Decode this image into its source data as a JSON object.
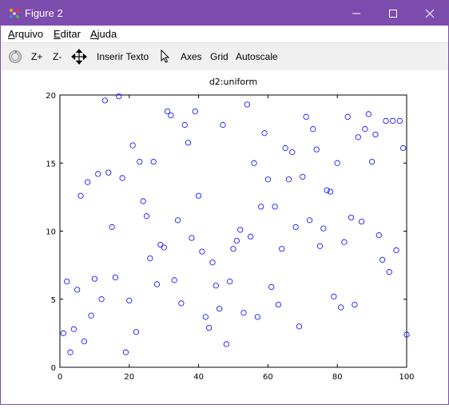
{
  "window": {
    "title": "Figure 2"
  },
  "menu": {
    "file_prefix": "",
    "file_hot": "A",
    "file_rest": "rquivo",
    "edit_hot": "E",
    "edit_rest": "ditar",
    "help_hot": "A",
    "help_rest": "juda"
  },
  "toolbar": {
    "zoom_in": "Z+",
    "zoom_out": "Z-",
    "insert_text": "Inserir Texto",
    "axes": "Axes",
    "grid": "Grid",
    "autoscale": "Autoscale"
  },
  "colors": {
    "titlebar": "#7d4caf",
    "marker": "#0000ff"
  },
  "chart_data": {
    "type": "scatter",
    "title": "d2:uniform",
    "xlabel": "",
    "ylabel": "",
    "xlim": [
      0,
      100
    ],
    "ylim": [
      0,
      20
    ],
    "xticks": [
      0,
      20,
      40,
      60,
      80,
      100
    ],
    "yticks": [
      0,
      5,
      10,
      15,
      20
    ],
    "grid": false,
    "marker": "open-circle",
    "series": [
      {
        "points": [
          [
            1,
            2.5
          ],
          [
            2,
            6.3
          ],
          [
            3,
            1.1
          ],
          [
            4,
            2.8
          ],
          [
            5,
            5.7
          ],
          [
            6,
            12.6
          ],
          [
            7,
            1.9
          ],
          [
            8,
            13.6
          ],
          [
            9,
            3.8
          ],
          [
            10,
            6.5
          ],
          [
            11,
            14.2
          ],
          [
            12,
            5.0
          ],
          [
            13,
            19.6
          ],
          [
            14,
            14.3
          ],
          [
            15,
            10.3
          ],
          [
            16,
            6.6
          ],
          [
            17,
            19.9
          ],
          [
            18,
            13.9
          ],
          [
            19,
            1.1
          ],
          [
            20,
            4.9
          ],
          [
            21,
            16.3
          ],
          [
            22,
            2.6
          ],
          [
            23,
            15.1
          ],
          [
            24,
            12.2
          ],
          [
            25,
            11.1
          ],
          [
            26,
            8.0
          ],
          [
            27,
            15.1
          ],
          [
            28,
            6.1
          ],
          [
            29,
            9.0
          ],
          [
            30,
            8.8
          ],
          [
            31,
            18.8
          ],
          [
            32,
            18.5
          ],
          [
            33,
            6.4
          ],
          [
            34,
            10.8
          ],
          [
            35,
            4.7
          ],
          [
            36,
            17.8
          ],
          [
            37,
            16.5
          ],
          [
            38,
            9.5
          ],
          [
            39,
            18.8
          ],
          [
            40,
            12.6
          ],
          [
            41,
            8.5
          ],
          [
            42,
            3.7
          ],
          [
            43,
            2.9
          ],
          [
            44,
            7.7
          ],
          [
            45,
            6.0
          ],
          [
            46,
            4.3
          ],
          [
            47,
            17.8
          ],
          [
            48,
            1.7
          ],
          [
            49,
            6.3
          ],
          [
            50,
            8.7
          ],
          [
            51,
            9.3
          ],
          [
            52,
            10.1
          ],
          [
            53,
            4.0
          ],
          [
            54,
            19.3
          ],
          [
            55,
            9.6
          ],
          [
            56,
            15.0
          ],
          [
            57,
            3.7
          ],
          [
            58,
            11.8
          ],
          [
            59,
            17.2
          ],
          [
            60,
            13.8
          ],
          [
            61,
            5.9
          ],
          [
            62,
            11.8
          ],
          [
            63,
            4.6
          ],
          [
            64,
            8.7
          ],
          [
            65,
            16.1
          ],
          [
            66,
            13.8
          ],
          [
            67,
            15.8
          ],
          [
            68,
            10.3
          ],
          [
            69,
            3.0
          ],
          [
            70,
            14.0
          ],
          [
            71,
            18.4
          ],
          [
            72,
            10.8
          ],
          [
            73,
            17.5
          ],
          [
            74,
            16.0
          ],
          [
            75,
            8.9
          ],
          [
            76,
            10.2
          ],
          [
            77,
            13.0
          ],
          [
            78,
            12.9
          ],
          [
            79,
            5.2
          ],
          [
            80,
            15.0
          ],
          [
            81,
            4.4
          ],
          [
            82,
            9.2
          ],
          [
            83,
            18.4
          ],
          [
            84,
            11.0
          ],
          [
            85,
            4.6
          ],
          [
            86,
            16.9
          ],
          [
            87,
            10.7
          ],
          [
            88,
            17.5
          ],
          [
            89,
            18.6
          ],
          [
            90,
            15.1
          ],
          [
            91,
            17.1
          ],
          [
            92,
            9.7
          ],
          [
            93,
            7.9
          ],
          [
            94,
            18.1
          ],
          [
            95,
            7.0
          ],
          [
            96,
            18.1
          ],
          [
            97,
            8.6
          ],
          [
            98,
            18.1
          ],
          [
            99,
            16.1
          ],
          [
            100,
            2.4
          ]
        ]
      }
    ]
  }
}
